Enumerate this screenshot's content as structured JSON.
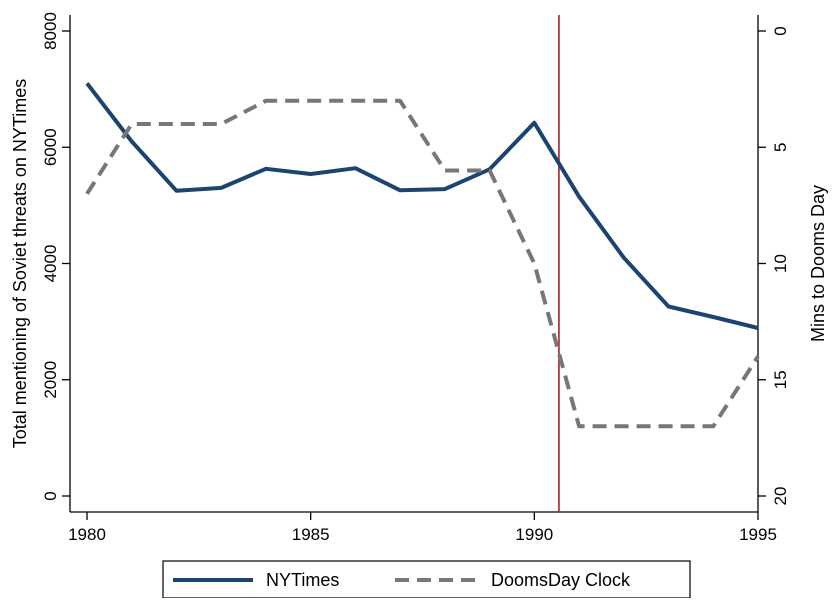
{
  "chart_data": {
    "type": "line",
    "title": "",
    "xlabel": "",
    "ylabel": "Total mentioning of Soviet threats on NYTimes",
    "y2label": "Mins to Dooms Day",
    "xlim": [
      1980,
      1995
    ],
    "ylim": [
      0,
      8000
    ],
    "y2lim": [
      0,
      20
    ],
    "y2_reversed": true,
    "x_ticks": [
      1980,
      1985,
      1990,
      1995
    ],
    "y_ticks": [
      0,
      2000,
      4000,
      6000,
      8000
    ],
    "y2_ticks": [
      0,
      5,
      10,
      15,
      20
    ],
    "grid": false,
    "legend_position": "bottom",
    "reference_line": {
      "x": 1990.55,
      "color": "#a3222e"
    },
    "series": [
      {
        "name": "NYTimes",
        "axis": "left",
        "color": "#1c4470",
        "dash": "solid",
        "x": [
          1980,
          1981,
          1982,
          1983,
          1984,
          1985,
          1986,
          1987,
          1988,
          1989,
          1990,
          1991,
          1992,
          1993,
          1994,
          1995
        ],
        "values": [
          7100,
          6100,
          5250,
          5300,
          5630,
          5540,
          5640,
          5260,
          5280,
          5620,
          6420,
          5150,
          4100,
          3260,
          3080,
          2890
        ]
      },
      {
        "name": "DoomsDay Clock",
        "axis": "right",
        "color": "#777777",
        "dash": "dashed",
        "x": [
          1980,
          1981,
          1982,
          1983,
          1984,
          1985,
          1986,
          1987,
          1988,
          1989,
          1990,
          1991,
          1992,
          1993,
          1994,
          1995
        ],
        "values": [
          7,
          4,
          4,
          4,
          3,
          3,
          3,
          3,
          6,
          6,
          10,
          17,
          17,
          17,
          17,
          14
        ]
      }
    ]
  }
}
